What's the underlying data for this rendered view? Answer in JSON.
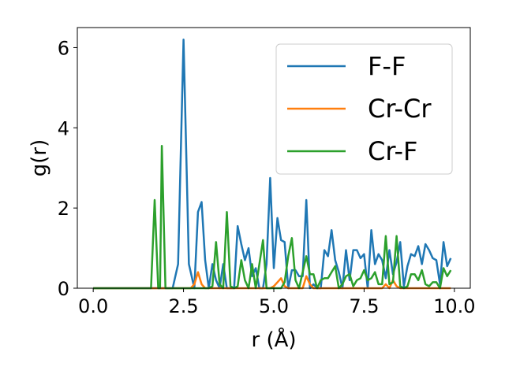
{
  "chart_data": {
    "type": "line",
    "xlabel": "r (Å)",
    "ylabel": "g(r)",
    "xlim": [
      -0.44,
      10.44
    ],
    "ylim": [
      0,
      6.5
    ],
    "xticks": [
      0.0,
      2.5,
      5.0,
      7.5,
      10.0
    ],
    "xtick_labels": [
      "0.0",
      "2.5",
      "5.0",
      "7.5",
      "10.0"
    ],
    "yticks": [
      0,
      2,
      4,
      6
    ],
    "ytick_labels": [
      "0",
      "2",
      "4",
      "6"
    ],
    "grid": false,
    "legend_position": "top-right",
    "series": [
      {
        "name": "F-F",
        "color": "#1f77b4",
        "x": [
          0.0,
          2.2,
          2.35,
          2.5,
          2.65,
          2.8,
          2.9,
          3.0,
          3.1,
          3.2,
          3.3,
          3.4,
          3.5,
          3.6,
          3.7,
          3.8,
          3.9,
          4.0,
          4.1,
          4.2,
          4.3,
          4.4,
          4.5,
          4.6,
          4.7,
          4.8,
          4.9,
          5.0,
          5.1,
          5.2,
          5.3,
          5.4,
          5.5,
          5.6,
          5.7,
          5.8,
          5.9,
          6.0,
          6.1,
          6.2,
          6.3,
          6.4,
          6.5,
          6.6,
          6.7,
          6.8,
          6.9,
          7.0,
          7.1,
          7.2,
          7.3,
          7.4,
          7.5,
          7.6,
          7.7,
          7.8,
          7.9,
          8.0,
          8.1,
          8.2,
          8.3,
          8.4,
          8.5,
          8.6,
          8.7,
          8.8,
          8.9,
          9.0,
          9.1,
          9.2,
          9.3,
          9.4,
          9.5,
          9.6,
          9.7,
          9.8,
          9.9
        ],
        "y": [
          0.0,
          0.0,
          0.6,
          6.2,
          0.6,
          0.0,
          1.9,
          2.15,
          0.7,
          0.0,
          0.6,
          0.2,
          0.0,
          0.6,
          0.0,
          0.0,
          0.0,
          1.55,
          1.1,
          0.7,
          1.0,
          0.3,
          0.5,
          0.0,
          0.0,
          0.6,
          2.75,
          0.5,
          1.75,
          1.2,
          1.15,
          0.0,
          0.45,
          0.45,
          0.3,
          0.3,
          2.2,
          0.0,
          0.1,
          0.0,
          0.0,
          0.95,
          0.8,
          1.45,
          0.7,
          0.4,
          0.0,
          0.95,
          0.2,
          0.95,
          0.95,
          0.75,
          0.85,
          0.0,
          1.45,
          0.6,
          0.85,
          0.7,
          0.25,
          0.95,
          0.35,
          0.65,
          1.15,
          0.05,
          0.55,
          0.85,
          0.8,
          1.05,
          0.6,
          1.1,
          0.95,
          0.75,
          0.7,
          0.1,
          1.15,
          0.55,
          0.75
        ]
      },
      {
        "name": "Cr-Cr",
        "color": "#ff7f0e",
        "x": [
          0.0,
          2.7,
          2.8,
          2.9,
          3.0,
          3.1,
          4.9,
          5.0,
          5.1,
          5.2,
          5.3,
          5.4,
          5.8,
          5.9,
          6.0,
          6.1,
          7.9,
          8.0,
          8.1,
          8.2,
          8.3,
          8.4,
          8.5,
          8.6,
          9.8,
          9.9
        ],
        "y": [
          0.0,
          0.0,
          0.1,
          0.4,
          0.1,
          0.0,
          0.0,
          0.05,
          0.15,
          0.25,
          0.05,
          0.0,
          0.0,
          0.3,
          0.1,
          0.0,
          0.0,
          0.0,
          0.1,
          0.0,
          0.2,
          0.05,
          0.0,
          0.0,
          0.0,
          0.0
        ]
      },
      {
        "name": "Cr-F",
        "color": "#2ca02c",
        "x": [
          0.0,
          1.6,
          1.7,
          1.8,
          1.85,
          1.9,
          2.0,
          2.1,
          3.0,
          3.2,
          3.3,
          3.4,
          3.5,
          3.6,
          3.7,
          3.8,
          3.9,
          4.0,
          4.1,
          4.2,
          4.3,
          4.4,
          4.5,
          4.6,
          4.7,
          4.8,
          4.9,
          5.0,
          5.1,
          5.2,
          5.3,
          5.4,
          5.5,
          5.6,
          5.7,
          5.8,
          5.9,
          6.0,
          6.1,
          6.2,
          6.3,
          6.4,
          6.5,
          6.6,
          6.7,
          6.8,
          6.9,
          7.0,
          7.1,
          7.2,
          7.3,
          7.4,
          7.5,
          7.6,
          7.7,
          7.8,
          7.9,
          8.0,
          8.1,
          8.2,
          8.3,
          8.4,
          8.5,
          8.6,
          8.7,
          8.8,
          8.9,
          9.0,
          9.1,
          9.2,
          9.3,
          9.4,
          9.5,
          9.6,
          9.7,
          9.8,
          9.9
        ],
        "y": [
          0.0,
          0.0,
          2.2,
          0.0,
          0.0,
          3.55,
          0.0,
          0.0,
          0.0,
          0.0,
          0.05,
          1.15,
          0.1,
          0.0,
          1.9,
          0.05,
          0.0,
          0.05,
          0.7,
          0.2,
          0.0,
          0.6,
          0.0,
          0.6,
          1.2,
          0.0,
          0.0,
          0.0,
          0.0,
          0.0,
          0.15,
          0.8,
          1.25,
          0.2,
          0.0,
          0.4,
          0.8,
          0.35,
          0.35,
          0.0,
          0.2,
          0.25,
          0.25,
          0.4,
          0.55,
          0.0,
          0.1,
          0.3,
          0.35,
          0.05,
          0.2,
          0.25,
          0.45,
          0.2,
          0.25,
          0.4,
          0.1,
          0.1,
          1.3,
          0.1,
          0.15,
          1.3,
          0.05,
          0.0,
          0.05,
          0.35,
          0.35,
          0.2,
          0.45,
          0.1,
          0.05,
          0.15,
          0.15,
          0.0,
          0.5,
          0.3,
          0.45
        ]
      }
    ]
  }
}
